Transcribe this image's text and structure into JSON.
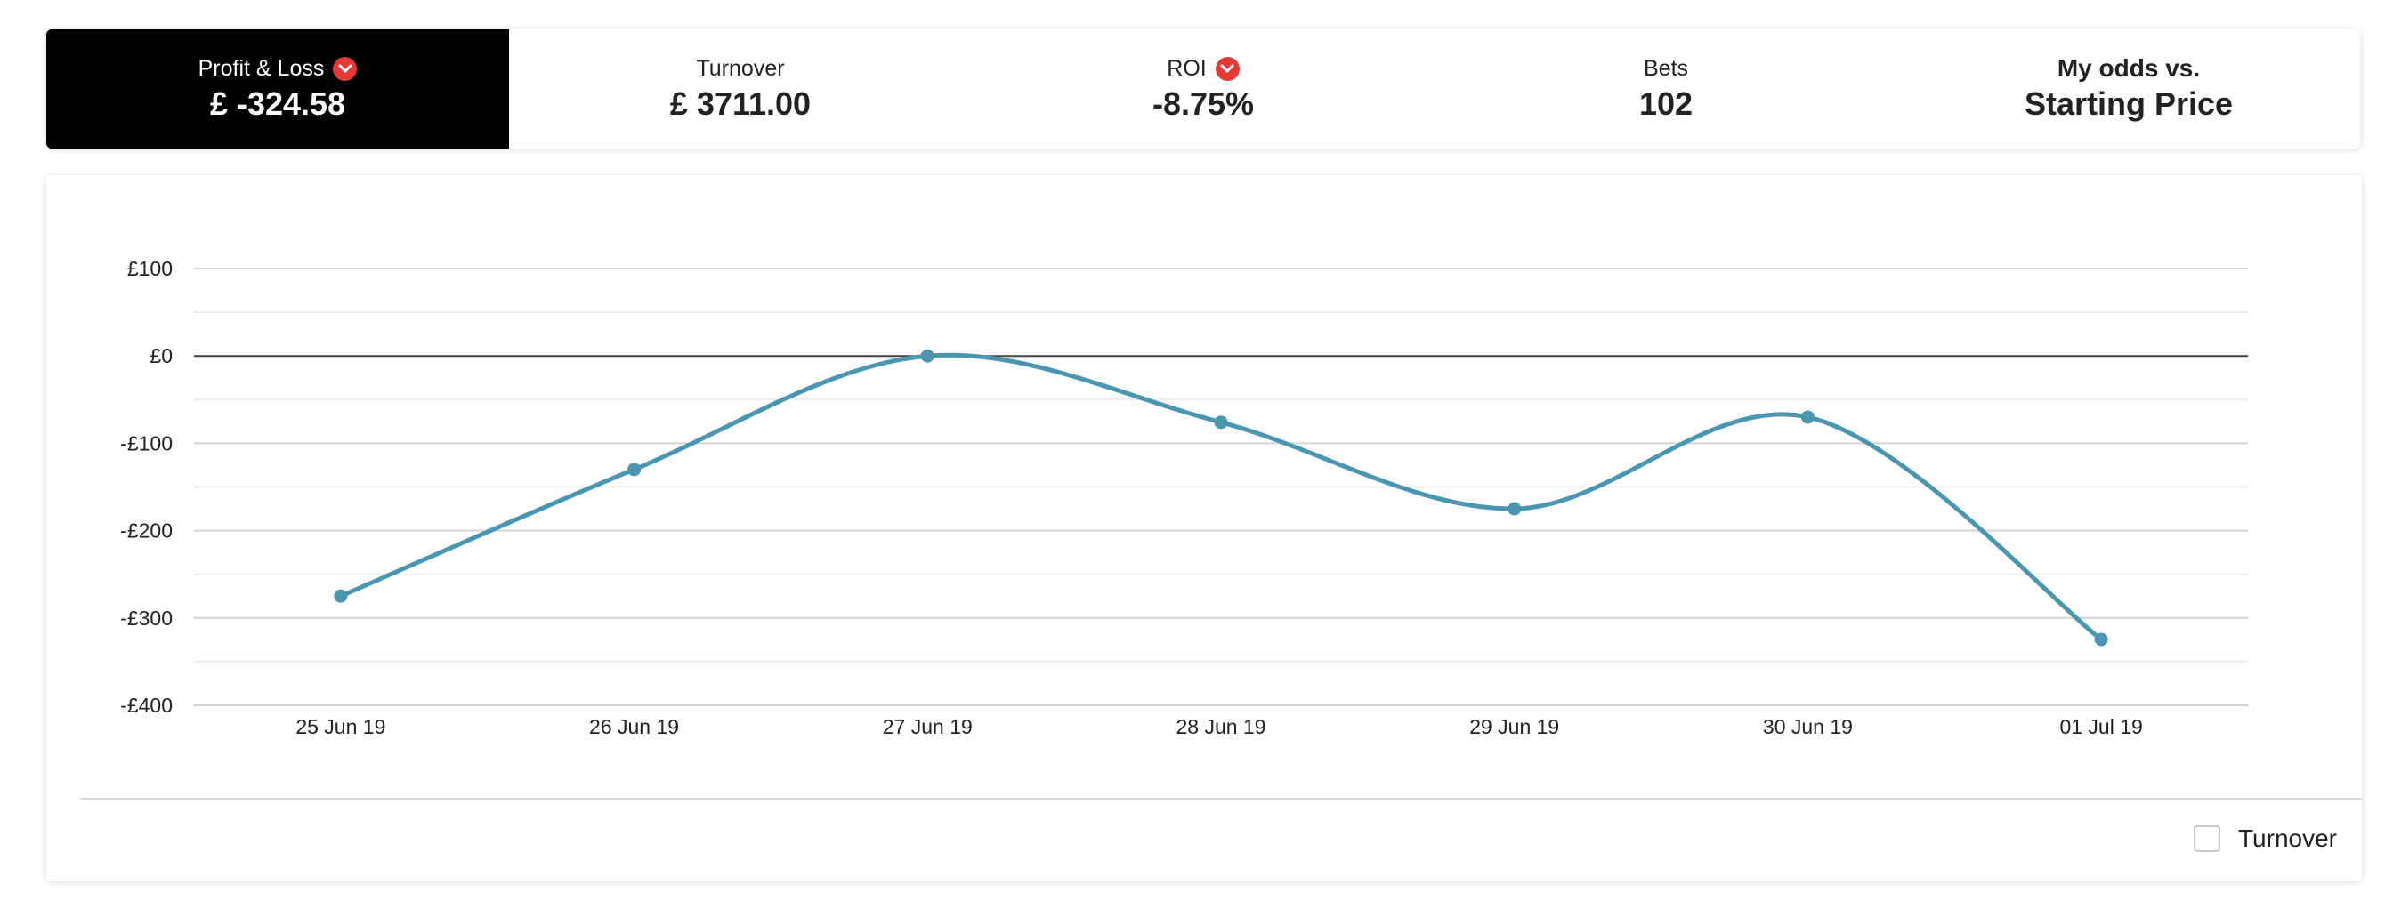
{
  "tabs": [
    {
      "label": "Profit & Loss",
      "value": "£ -324.58",
      "has_arrow": true,
      "active": true
    },
    {
      "label": "Turnover",
      "value": "£ 3711.00",
      "has_arrow": false,
      "active": false
    },
    {
      "label": "ROI",
      "value": "-8.75%",
      "has_arrow": true,
      "active": false
    },
    {
      "label": "Bets",
      "value": "102",
      "has_arrow": false,
      "active": false
    },
    {
      "label": "My odds vs.",
      "value": "Starting Price",
      "has_arrow": false,
      "active": false
    }
  ],
  "icons": {
    "tab_arrow": "chevron-down-circle-icon"
  },
  "colors": {
    "active_tab_bg": "#000000",
    "arrow_badge": "#e53935",
    "series_line": "#4a96b0"
  },
  "chart_data": {
    "type": "line",
    "title": "",
    "xlabel": "",
    "ylabel": "",
    "categories": [
      "25 Jun 19",
      "26 Jun 19",
      "27 Jun 19",
      "28 Jun 19",
      "29 Jun 19",
      "30 Jun 19",
      "01 Jul 19"
    ],
    "series": [
      {
        "values": [
          -275,
          -130,
          0,
          -76,
          -175,
          -70,
          -324.58
        ]
      }
    ],
    "ylim": [
      -400,
      100
    ],
    "y_ticks": [
      100,
      0,
      -100,
      -200,
      -300,
      -400
    ],
    "y_tick_labels": [
      "£100",
      "£0",
      "-£100",
      "-£200",
      "-£300",
      "-£400"
    ],
    "grid": true,
    "smooth": true
  },
  "legend": {
    "turnover_label": "Turnover",
    "turnover_checked": false
  }
}
